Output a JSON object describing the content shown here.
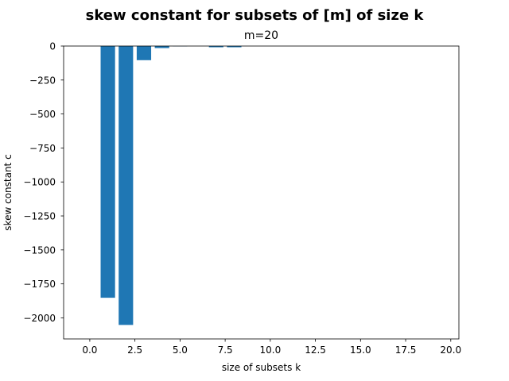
{
  "chart_data": {
    "type": "bar",
    "title": "skew constant for subsets of [m] of size k",
    "subtitle": "m=20",
    "xlabel": "size of subsets k",
    "ylabel": "skew constant c",
    "x": [
      1,
      2,
      3,
      4,
      5,
      6,
      7,
      8,
      9,
      10,
      11,
      12,
      13,
      14,
      15,
      16,
      17,
      18,
      19
    ],
    "values": [
      -1852,
      -2052,
      -104,
      -15,
      -2,
      0,
      -9,
      -9,
      0,
      0,
      0,
      0,
      0,
      0,
      0,
      0,
      0,
      0,
      0
    ],
    "xlim": [
      -1.45,
      20.45
    ],
    "ylim": [
      -2155,
      0
    ],
    "xticks": [
      0.0,
      2.5,
      5.0,
      7.5,
      10.0,
      12.5,
      15.0,
      17.5,
      20.0
    ],
    "xtick_labels": [
      "0.0",
      "2.5",
      "5.0",
      "7.5",
      "10.0",
      "12.5",
      "15.0",
      "17.5",
      "20.0"
    ],
    "yticks": [
      0,
      -250,
      -500,
      -750,
      -1000,
      -1250,
      -1500,
      -1750,
      -2000
    ],
    "ytick_labels": [
      "0",
      "−250",
      "−500",
      "−750",
      "−1000",
      "−1250",
      "−1500",
      "−1750",
      "−2000"
    ],
    "bar_color": "#1f77b4",
    "grid": false,
    "legend": "none"
  }
}
